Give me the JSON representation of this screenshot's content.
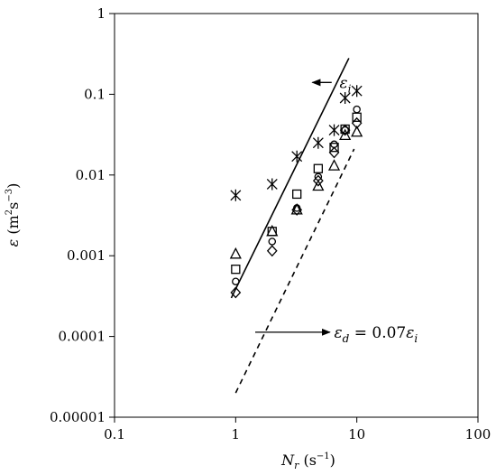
{
  "chart_data": {
    "type": "scatter",
    "xscale": "log",
    "yscale": "log",
    "xlim": [
      0.1,
      100
    ],
    "ylim": [
      1e-05,
      1
    ],
    "grid": false,
    "legend": "none",
    "xlabel": {
      "sym": "N",
      "sub": "r",
      "unit": " (s",
      "exp": "−1",
      "close": ")"
    },
    "ylabel": {
      "sym": "ε",
      "unit": " (m",
      "e1": "2",
      "mid": "s",
      "e2": "−3",
      "close": ")"
    },
    "xticks": [
      {
        "v": 0.1,
        "label": "0.1"
      },
      {
        "v": 1,
        "label": "1"
      },
      {
        "v": 10,
        "label": "10"
      },
      {
        "v": 100,
        "label": "100"
      }
    ],
    "yticks": [
      {
        "v": 1e-05,
        "label": "0.00001"
      },
      {
        "v": 0.0001,
        "label": "0.0001"
      },
      {
        "v": 0.001,
        "label": "0.001"
      },
      {
        "v": 0.01,
        "label": "0.01"
      },
      {
        "v": 0.1,
        "label": "0.1"
      },
      {
        "v": 1,
        "label": "1"
      }
    ],
    "series": [
      {
        "marker": "star",
        "points": [
          [
            1,
            0.0056
          ],
          [
            2,
            0.0077
          ],
          [
            3.2,
            0.017
          ],
          [
            4.8,
            0.025
          ],
          [
            6.5,
            0.036
          ],
          [
            8,
            0.09
          ],
          [
            10,
            0.11
          ]
        ]
      },
      {
        "marker": "square",
        "points": [
          [
            1,
            0.00068
          ],
          [
            2,
            0.002
          ],
          [
            3.2,
            0.0058
          ],
          [
            4.8,
            0.012
          ],
          [
            6.5,
            0.022
          ],
          [
            8,
            0.037
          ],
          [
            10,
            0.052
          ]
        ]
      },
      {
        "marker": "circle",
        "points": [
          [
            1,
            0.00048
          ],
          [
            2,
            0.0015
          ],
          [
            3.2,
            0.0039
          ],
          [
            4.8,
            0.0095
          ],
          [
            6.5,
            0.024
          ],
          [
            8,
            0.036
          ],
          [
            10,
            0.065
          ]
        ]
      },
      {
        "marker": "triangle",
        "points": [
          [
            1,
            0.00105
          ],
          [
            2,
            0.002
          ],
          [
            3.2,
            0.0037
          ],
          [
            4.8,
            0.0073
          ],
          [
            6.5,
            0.013
          ],
          [
            8,
            0.031
          ],
          [
            10,
            0.034
          ]
        ]
      },
      {
        "marker": "diamond",
        "points": [
          [
            1,
            0.00035
          ],
          [
            2,
            0.00115
          ],
          [
            3.2,
            0.0037
          ],
          [
            4.8,
            0.0085
          ],
          [
            6.5,
            0.019
          ],
          [
            8,
            0.036
          ],
          [
            10,
            0.044
          ]
        ]
      }
    ],
    "lines": [
      {
        "id": "eps-i",
        "style": "solid",
        "from": [
          0.92,
          0.0003
        ],
        "to": [
          8.6,
          0.28
        ]
      },
      {
        "id": "eps-d",
        "style": "dashed",
        "from": [
          1,
          2e-05
        ],
        "to": [
          9.5,
          0.021
        ]
      }
    ],
    "annotations": [
      {
        "id": "eps-i-label",
        "sym": "ε",
        "sub": "i",
        "pos": [
          7.2,
          0.14
        ],
        "arrow_from": [
          6.2,
          0.14
        ],
        "arrow_to": [
          4.3,
          0.14
        ]
      },
      {
        "id": "eps-d-label",
        "sym": "ε",
        "sub": "d",
        "eq": " = 0.07",
        "sym2": "ε",
        "sub2": "i",
        "pos": [
          6.5,
          0.000113
        ],
        "arrow_from": [
          1.45,
          0.000113
        ],
        "arrow_to": [
          6.0,
          0.000113
        ]
      }
    ]
  }
}
